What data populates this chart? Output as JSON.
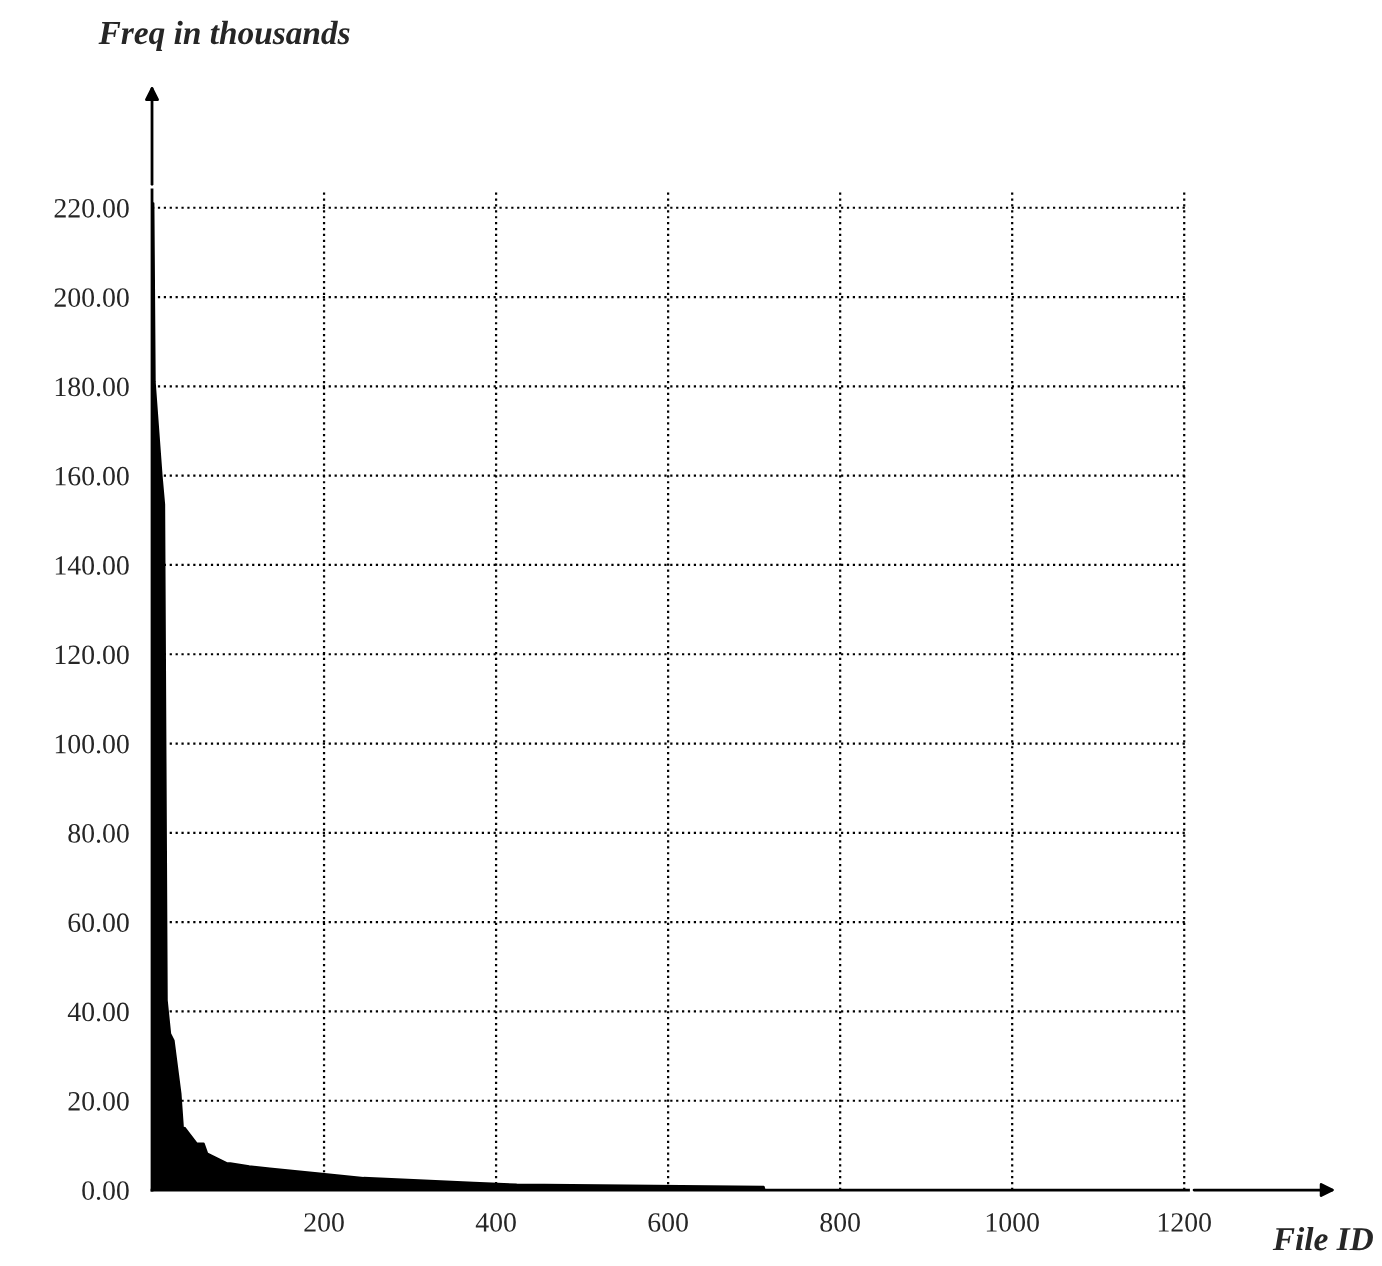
{
  "chart_data": {
    "type": "area",
    "xlabel": "File ID",
    "ylabel": "Freq in thousands",
    "x": [
      0,
      1.5,
      3,
      11,
      14,
      17,
      21,
      25,
      33,
      36,
      38,
      52,
      60,
      64,
      87,
      91,
      113,
      137,
      195,
      246,
      304,
      374,
      424,
      711,
      712
    ],
    "series": [
      {
        "color": "#000000",
        "values": [
          221,
          221,
          181,
          160,
          153.5,
          42.5,
          35,
          33.5,
          21.6,
          13.4,
          13.9,
          10.4,
          10.4,
          8.2,
          6,
          6,
          5.3,
          4.8,
          3.7,
          2.7,
          2.2,
          1.6,
          1.2,
          0.7,
          0
        ]
      }
    ],
    "xlim": [
      0,
      1205
    ],
    "ylim": [
      0,
      224
    ],
    "xticks": [
      200,
      400,
      600,
      800,
      1000,
      1200
    ],
    "yticks": [
      {
        "value": 0,
        "label": "0.00"
      },
      {
        "value": 20,
        "label": "20.00"
      },
      {
        "value": 40,
        "label": "40.00"
      },
      {
        "value": 60,
        "label": "60.00"
      },
      {
        "value": 80,
        "label": "80.00"
      },
      {
        "value": 100,
        "label": "100.00"
      },
      {
        "value": 120,
        "label": "120.00"
      },
      {
        "value": 140,
        "label": "140.00"
      },
      {
        "value": 160,
        "label": "160.00"
      },
      {
        "value": 180,
        "label": "180.00"
      },
      {
        "value": 200,
        "label": "200.00"
      },
      {
        "value": 220,
        "label": "220.00"
      }
    ],
    "grid": true,
    "line_style": "dotted",
    "legend": false
  }
}
